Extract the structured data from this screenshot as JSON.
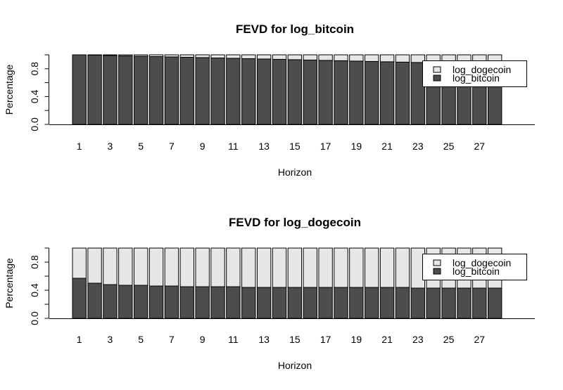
{
  "chart_data": [
    {
      "type": "bar",
      "stacked": true,
      "title": "FEVD for log_bitcoin",
      "xlabel": "Horizon",
      "ylabel": "Percentage",
      "ylim": [
        0,
        1
      ],
      "yticks": [
        "0.0",
        "0.4",
        "0.8"
      ],
      "x": [
        1,
        2,
        3,
        4,
        5,
        6,
        7,
        8,
        9,
        10,
        11,
        12,
        13,
        14,
        15,
        16,
        17,
        18,
        19,
        20,
        21,
        22,
        23,
        24,
        25,
        26,
        27,
        28
      ],
      "xtick_labels": [
        "1",
        "3",
        "5",
        "7",
        "9",
        "11",
        "13",
        "15",
        "17",
        "19",
        "21",
        "23",
        "25",
        "27"
      ],
      "legend": "top-right",
      "series": [
        {
          "name": "log_bitcoin",
          "color": "#4d4d4d",
          "values": [
            1.0,
            0.995,
            0.99,
            0.985,
            0.98,
            0.975,
            0.97,
            0.965,
            0.96,
            0.955,
            0.95,
            0.945,
            0.94,
            0.935,
            0.93,
            0.925,
            0.92,
            0.915,
            0.91,
            0.905,
            0.9,
            0.895,
            0.89,
            0.885,
            0.88,
            0.875,
            0.87,
            0.865
          ]
        },
        {
          "name": "log_dogecoin",
          "color": "#e6e6e6",
          "values": [
            0.0,
            0.005,
            0.01,
            0.015,
            0.02,
            0.025,
            0.03,
            0.035,
            0.04,
            0.045,
            0.05,
            0.055,
            0.06,
            0.065,
            0.07,
            0.075,
            0.08,
            0.085,
            0.09,
            0.095,
            0.1,
            0.105,
            0.11,
            0.115,
            0.12,
            0.125,
            0.13,
            0.135
          ]
        }
      ]
    },
    {
      "type": "bar",
      "stacked": true,
      "title": "FEVD for log_dogecoin",
      "xlabel": "Horizon",
      "ylabel": "Percentage",
      "ylim": [
        0,
        1
      ],
      "yticks": [
        "0.0",
        "0.4",
        "0.8"
      ],
      "x": [
        1,
        2,
        3,
        4,
        5,
        6,
        7,
        8,
        9,
        10,
        11,
        12,
        13,
        14,
        15,
        16,
        17,
        18,
        19,
        20,
        21,
        22,
        23,
        24,
        25,
        26,
        27,
        28
      ],
      "xtick_labels": [
        "1",
        "3",
        "5",
        "7",
        "9",
        "11",
        "13",
        "15",
        "17",
        "19",
        "21",
        "23",
        "25",
        "27"
      ],
      "legend": "top-right",
      "series": [
        {
          "name": "log_bitcoin",
          "color": "#4d4d4d",
          "values": [
            0.57,
            0.5,
            0.48,
            0.47,
            0.47,
            0.46,
            0.46,
            0.45,
            0.45,
            0.45,
            0.45,
            0.44,
            0.44,
            0.44,
            0.44,
            0.44,
            0.44,
            0.44,
            0.44,
            0.44,
            0.44,
            0.44,
            0.43,
            0.43,
            0.43,
            0.43,
            0.43,
            0.43
          ]
        },
        {
          "name": "log_dogecoin",
          "color": "#e6e6e6",
          "values": [
            0.43,
            0.5,
            0.52,
            0.53,
            0.53,
            0.54,
            0.54,
            0.55,
            0.55,
            0.55,
            0.55,
            0.56,
            0.56,
            0.56,
            0.56,
            0.56,
            0.56,
            0.56,
            0.56,
            0.56,
            0.56,
            0.56,
            0.57,
            0.57,
            0.57,
            0.57,
            0.57,
            0.57
          ]
        }
      ]
    }
  ]
}
